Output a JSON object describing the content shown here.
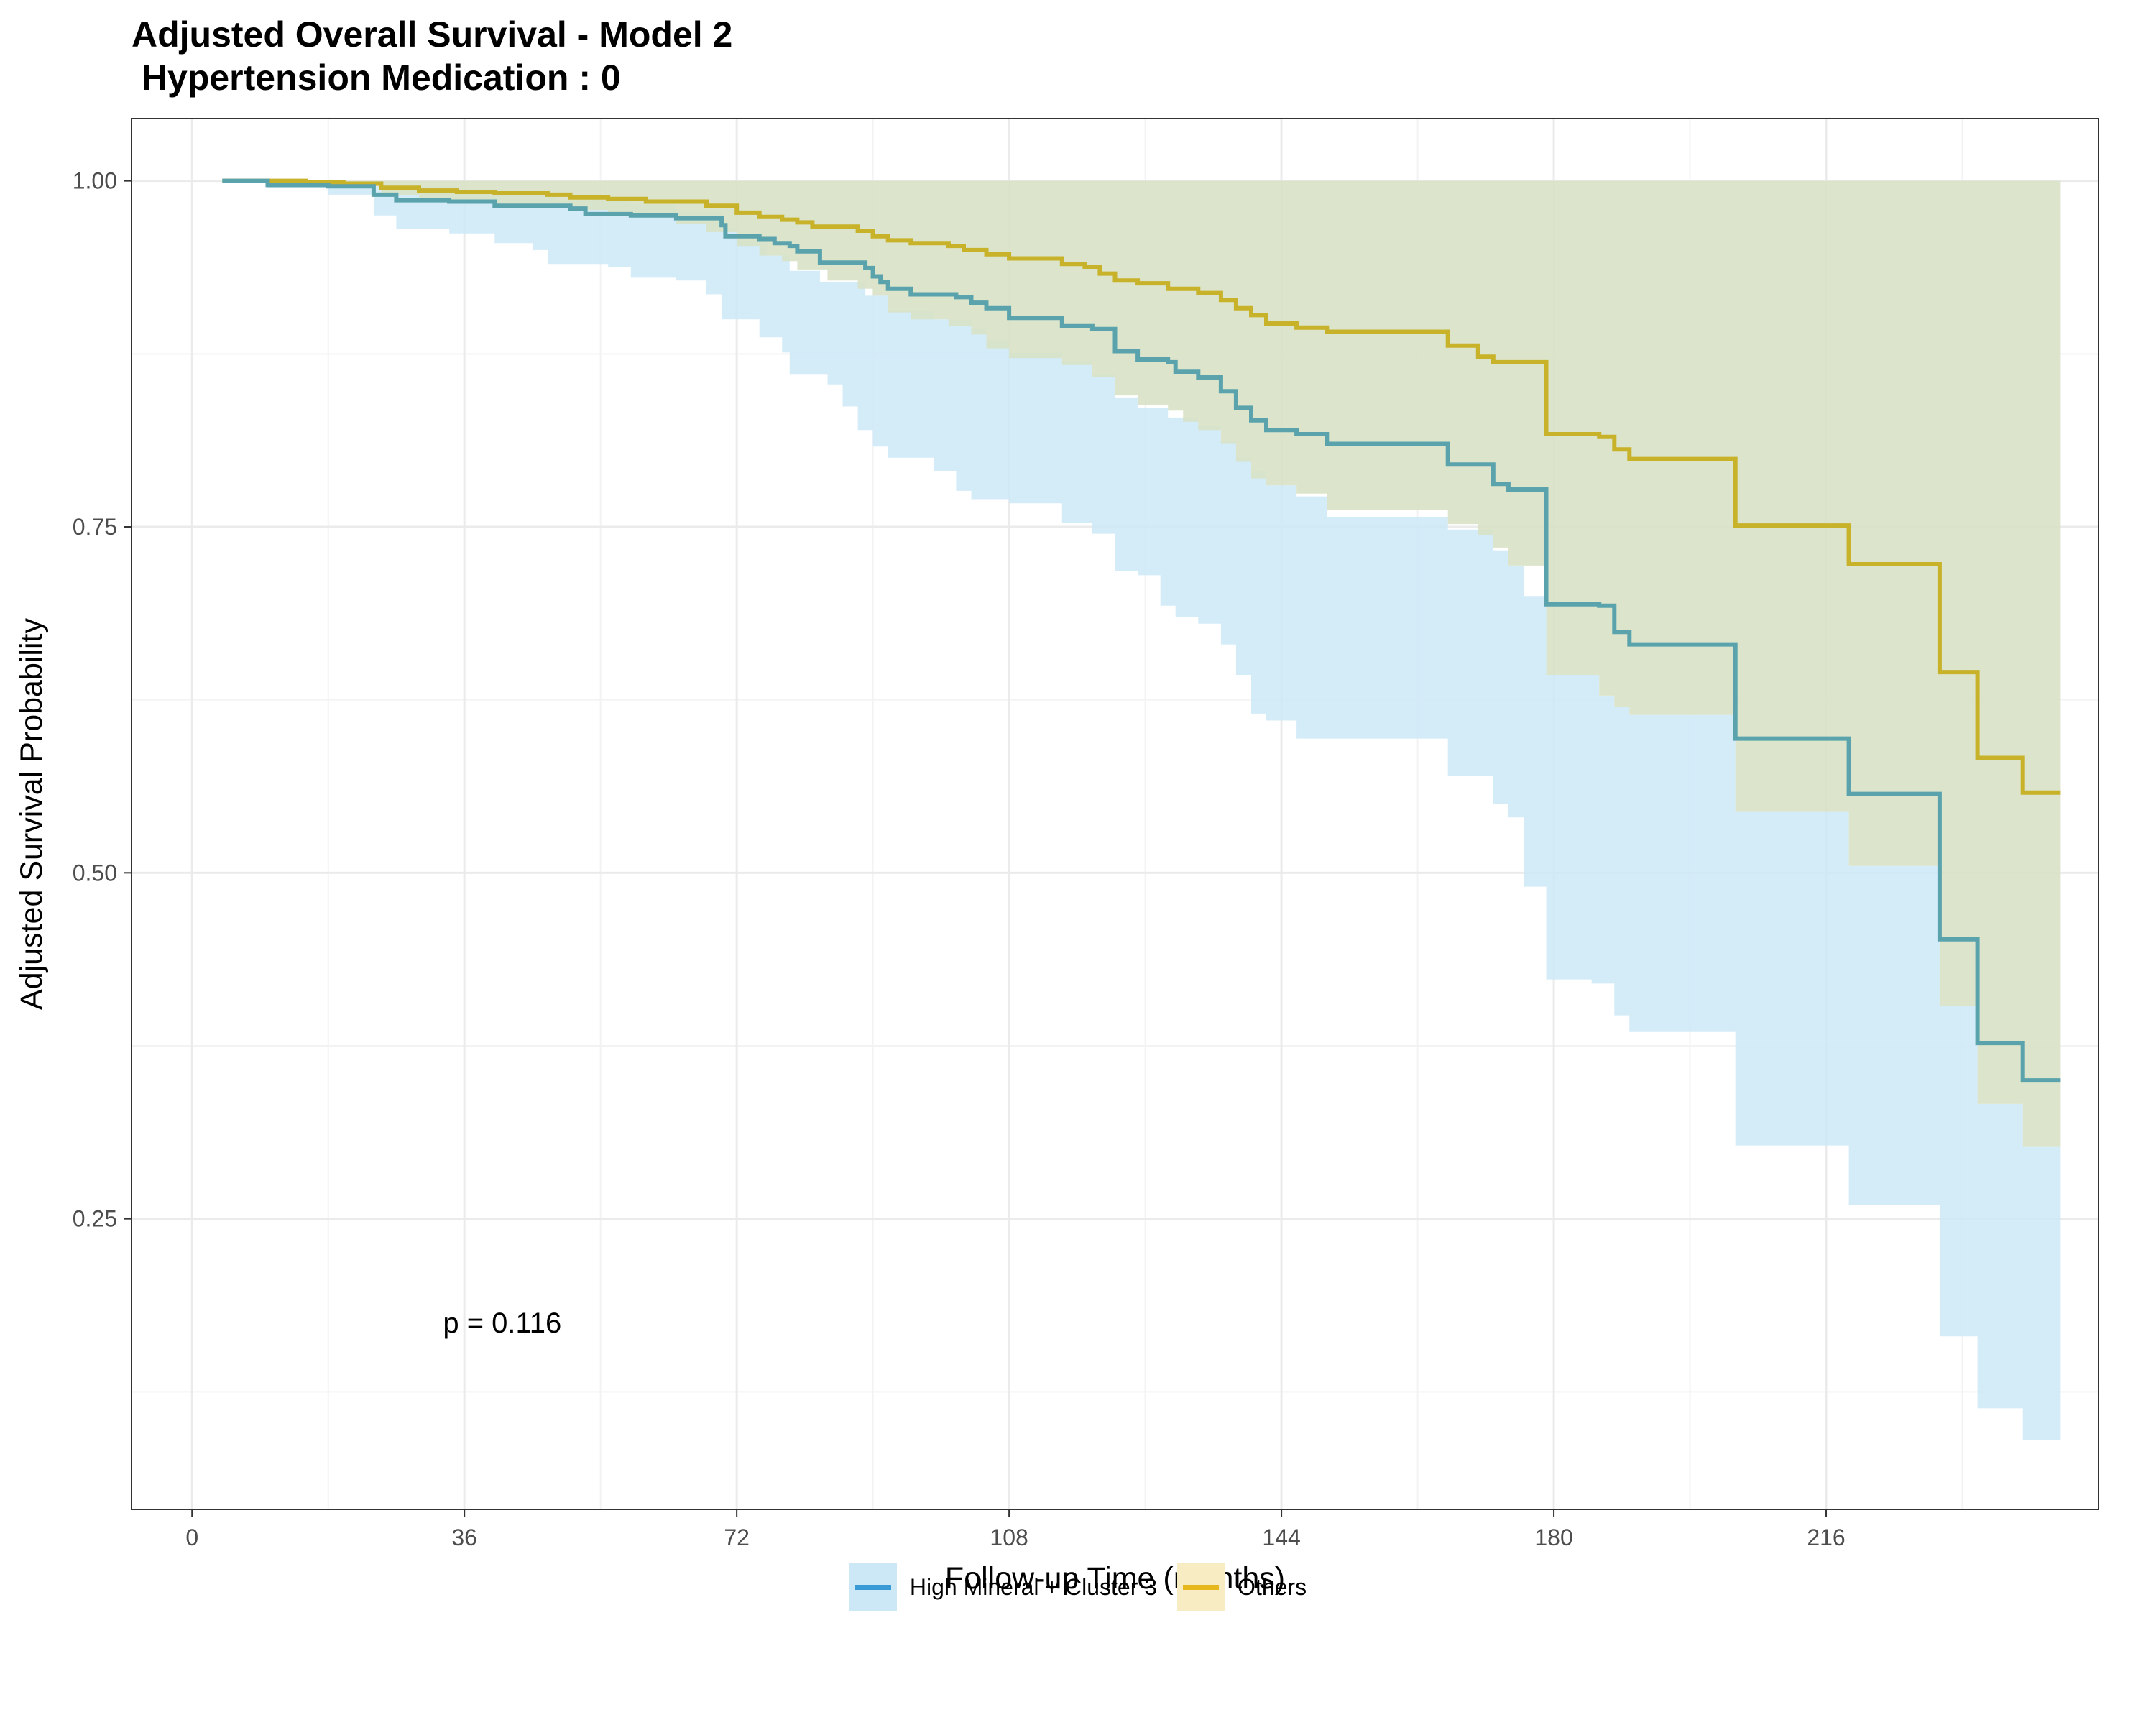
{
  "chart_data": {
    "type": "line",
    "title": "Adjusted Overall Survival - Model 2\n Hypertension Medication : 0",
    "xlabel": "Follow-up Time (months)",
    "ylabel": "Adjusted Survival Probability",
    "xlim": [
      -8,
      252
    ],
    "ylim": [
      0.04,
      1.045
    ],
    "xticks": [
      0,
      36,
      72,
      108,
      144,
      180,
      216
    ],
    "yticks": [
      0.25,
      0.5,
      0.75,
      1.0
    ],
    "ytick_labels": [
      "0.25",
      "0.50",
      "0.75",
      "1.00"
    ],
    "grid": true,
    "legend_position": "bottom",
    "annotation": "p = 0.116",
    "annotation_pos": [
      41,
      0.175
    ],
    "series": [
      {
        "name": "High Mineral + Cluster 3",
        "line_color": "#5aa3ad",
        "band_color": "#cce8f7",
        "legend_line_color": "#3a9ad6",
        "steps": [
          [
            4,
            1.0
          ],
          [
            10,
            0.997
          ],
          [
            18,
            0.996
          ],
          [
            24,
            0.99
          ],
          [
            27,
            0.986
          ],
          [
            34,
            0.985
          ],
          [
            40,
            0.982
          ],
          [
            50,
            0.98
          ],
          [
            52,
            0.976
          ],
          [
            58,
            0.975
          ],
          [
            64,
            0.973
          ],
          [
            70,
            0.968
          ],
          [
            70.5,
            0.96
          ],
          [
            75,
            0.958
          ],
          [
            77,
            0.955
          ],
          [
            79,
            0.953
          ],
          [
            80,
            0.949
          ],
          [
            83,
            0.941
          ],
          [
            89,
            0.937
          ],
          [
            90,
            0.931
          ],
          [
            91,
            0.927
          ],
          [
            92,
            0.922
          ],
          [
            95,
            0.918
          ],
          [
            101,
            0.916
          ],
          [
            103,
            0.912
          ],
          [
            105,
            0.908
          ],
          [
            108,
            0.901
          ],
          [
            115,
            0.895
          ],
          [
            119,
            0.893
          ],
          [
            122,
            0.877
          ],
          [
            125,
            0.871
          ],
          [
            129,
            0.869
          ],
          [
            130,
            0.862
          ],
          [
            133,
            0.858
          ],
          [
            136,
            0.848
          ],
          [
            138,
            0.836
          ],
          [
            140,
            0.827
          ],
          [
            142,
            0.82
          ],
          [
            146,
            0.817
          ],
          [
            150,
            0.81
          ],
          [
            166,
            0.795
          ],
          [
            172,
            0.781
          ],
          [
            174,
            0.777
          ],
          [
            179,
            0.694
          ],
          [
            186,
            0.693
          ],
          [
            188,
            0.674
          ],
          [
            190,
            0.665
          ],
          [
            203,
            0.665
          ],
          [
            204,
            0.597
          ],
          [
            218,
            0.597
          ],
          [
            219,
            0.557
          ],
          [
            230,
            0.557
          ],
          [
            231,
            0.452
          ],
          [
            235,
            0.452
          ],
          [
            236,
            0.377
          ],
          [
            241,
            0.377
          ],
          [
            242,
            0.35
          ],
          [
            247,
            0.35
          ]
        ],
        "upper": [
          [
            4,
            1.0
          ],
          [
            10,
            0.999
          ],
          [
            18,
            0.998
          ],
          [
            24,
            0.996
          ],
          [
            35,
            0.993
          ],
          [
            40,
            0.99
          ],
          [
            48,
            0.986
          ],
          [
            58,
            0.983
          ],
          [
            64,
            0.978
          ],
          [
            70,
            0.966
          ],
          [
            72,
            0.957
          ],
          [
            76,
            0.946
          ],
          [
            79,
            0.935
          ],
          [
            83,
            0.927
          ],
          [
            89,
            0.917
          ],
          [
            92,
            0.906
          ],
          [
            98,
            0.9
          ],
          [
            103,
            0.893
          ],
          [
            105,
            0.885
          ],
          [
            108,
            0.876
          ],
          [
            115,
            0.87
          ],
          [
            119,
            0.86
          ],
          [
            122,
            0.843
          ],
          [
            125,
            0.836
          ],
          [
            129,
            0.829
          ],
          [
            133,
            0.823
          ],
          [
            136,
            0.812
          ],
          [
            138,
            0.8
          ],
          [
            140,
            0.79
          ],
          [
            142,
            0.78
          ],
          [
            146,
            0.772
          ],
          [
            150,
            0.757
          ],
          [
            166,
            0.748
          ],
          [
            172,
            0.733
          ],
          [
            174,
            0.722
          ],
          [
            176,
            0.7
          ],
          [
            179,
            0.643
          ],
          [
            186,
            0.628
          ],
          [
            188,
            0.62
          ],
          [
            190,
            0.614
          ],
          [
            203,
            0.614
          ],
          [
            204,
            0.544
          ],
          [
            218,
            0.544
          ],
          [
            219,
            0.505
          ],
          [
            230,
            0.505
          ],
          [
            231,
            0.404
          ],
          [
            235,
            0.404
          ],
          [
            236,
            0.333
          ],
          [
            241,
            0.333
          ],
          [
            242,
            0.302
          ],
          [
            247,
            0.302
          ]
        ],
        "lower": [
          [
            4,
            1.0
          ],
          [
            10,
            0.995
          ],
          [
            18,
            0.99
          ],
          [
            24,
            0.975
          ],
          [
            27,
            0.965
          ],
          [
            34,
            0.962
          ],
          [
            40,
            0.955
          ],
          [
            45,
            0.95
          ],
          [
            47,
            0.94
          ],
          [
            55,
            0.938
          ],
          [
            58,
            0.93
          ],
          [
            64,
            0.928
          ],
          [
            68,
            0.918
          ],
          [
            70,
            0.9
          ],
          [
            75,
            0.887
          ],
          [
            78,
            0.876
          ],
          [
            79,
            0.86
          ],
          [
            84,
            0.853
          ],
          [
            86,
            0.837
          ],
          [
            88,
            0.82
          ],
          [
            90,
            0.808
          ],
          [
            92,
            0.8
          ],
          [
            98,
            0.79
          ],
          [
            101,
            0.776
          ],
          [
            103,
            0.77
          ],
          [
            108,
            0.767
          ],
          [
            115,
            0.753
          ],
          [
            119,
            0.745
          ],
          [
            122,
            0.718
          ],
          [
            125,
            0.715
          ],
          [
            128,
            0.693
          ],
          [
            130,
            0.685
          ],
          [
            133,
            0.68
          ],
          [
            136,
            0.665
          ],
          [
            138,
            0.643
          ],
          [
            140,
            0.615
          ],
          [
            142,
            0.61
          ],
          [
            146,
            0.597
          ],
          [
            150,
            0.597
          ],
          [
            166,
            0.57
          ],
          [
            172,
            0.55
          ],
          [
            174,
            0.54
          ],
          [
            176,
            0.49
          ],
          [
            179,
            0.423
          ],
          [
            185,
            0.42
          ],
          [
            188,
            0.397
          ],
          [
            190,
            0.385
          ],
          [
            203,
            0.385
          ],
          [
            204,
            0.303
          ],
          [
            218,
            0.303
          ],
          [
            219,
            0.26
          ],
          [
            230,
            0.26
          ],
          [
            231,
            0.165
          ],
          [
            235,
            0.165
          ],
          [
            236,
            0.113
          ],
          [
            241,
            0.113
          ],
          [
            242,
            0.09
          ],
          [
            247,
            0.09
          ]
        ]
      },
      {
        "name": "Others",
        "line_color": "#c8b22a",
        "band_color": "#d8e2c5",
        "legend_line_color": "#e6b81d",
        "legend_fill_color": "#f8ecc2",
        "steps": [
          [
            4,
            1.0
          ],
          [
            15,
            0.999
          ],
          [
            20,
            0.998
          ],
          [
            25,
            0.995
          ],
          [
            30,
            0.993
          ],
          [
            35,
            0.992
          ],
          [
            40,
            0.991
          ],
          [
            47,
            0.99
          ],
          [
            50,
            0.988
          ],
          [
            55,
            0.987
          ],
          [
            60,
            0.985
          ],
          [
            68,
            0.982
          ],
          [
            72,
            0.977
          ],
          [
            75,
            0.974
          ],
          [
            78,
            0.972
          ],
          [
            80,
            0.97
          ],
          [
            82,
            0.967
          ],
          [
            88,
            0.964
          ],
          [
            90,
            0.96
          ],
          [
            92,
            0.957
          ],
          [
            95,
            0.955
          ],
          [
            100,
            0.953
          ],
          [
            102,
            0.95
          ],
          [
            105,
            0.947
          ],
          [
            108,
            0.944
          ],
          [
            115,
            0.94
          ],
          [
            118,
            0.938
          ],
          [
            120,
            0.933
          ],
          [
            122,
            0.928
          ],
          [
            125,
            0.926
          ],
          [
            129,
            0.922
          ],
          [
            133,
            0.919
          ],
          [
            136,
            0.914
          ],
          [
            138,
            0.908
          ],
          [
            140,
            0.903
          ],
          [
            142,
            0.897
          ],
          [
            146,
            0.894
          ],
          [
            150,
            0.891
          ],
          [
            166,
            0.881
          ],
          [
            170,
            0.873
          ],
          [
            172,
            0.869
          ],
          [
            179,
            0.817
          ],
          [
            186,
            0.815
          ],
          [
            188,
            0.806
          ],
          [
            190,
            0.799
          ],
          [
            203,
            0.799
          ],
          [
            204,
            0.751
          ],
          [
            218,
            0.751
          ],
          [
            219,
            0.723
          ],
          [
            230,
            0.723
          ],
          [
            231,
            0.645
          ],
          [
            235,
            0.645
          ],
          [
            236,
            0.583
          ],
          [
            241,
            0.583
          ],
          [
            242,
            0.558
          ],
          [
            247,
            0.558
          ]
        ],
        "upper": [
          [
            4,
            1.0
          ],
          [
            247,
            1.0
          ]
        ],
        "lower": [
          [
            4,
            1.0
          ],
          [
            15,
            0.998
          ],
          [
            20,
            0.996
          ],
          [
            25,
            0.99
          ],
          [
            30,
            0.986
          ],
          [
            35,
            0.984
          ],
          [
            40,
            0.983
          ],
          [
            47,
            0.981
          ],
          [
            50,
            0.979
          ],
          [
            55,
            0.977
          ],
          [
            60,
            0.974
          ],
          [
            64,
            0.969
          ],
          [
            68,
            0.963
          ],
          [
            72,
            0.953
          ],
          [
            75,
            0.946
          ],
          [
            78,
            0.942
          ],
          [
            80,
            0.936
          ],
          [
            84,
            0.928
          ],
          [
            88,
            0.922
          ],
          [
            90,
            0.917
          ],
          [
            92,
            0.905
          ],
          [
            95,
            0.9
          ],
          [
            100,
            0.895
          ],
          [
            103,
            0.889
          ],
          [
            105,
            0.879
          ],
          [
            108,
            0.872
          ],
          [
            115,
            0.867
          ],
          [
            119,
            0.858
          ],
          [
            122,
            0.845
          ],
          [
            125,
            0.838
          ],
          [
            129,
            0.834
          ],
          [
            131,
            0.826
          ],
          [
            133,
            0.82
          ],
          [
            136,
            0.81
          ],
          [
            138,
            0.797
          ],
          [
            140,
            0.785
          ],
          [
            142,
            0.78
          ],
          [
            146,
            0.774
          ],
          [
            150,
            0.762
          ],
          [
            166,
            0.752
          ],
          [
            170,
            0.744
          ],
          [
            172,
            0.735
          ],
          [
            174,
            0.722
          ],
          [
            179,
            0.643
          ],
          [
            186,
            0.628
          ],
          [
            188,
            0.62
          ],
          [
            190,
            0.614
          ],
          [
            203,
            0.614
          ],
          [
            204,
            0.544
          ],
          [
            218,
            0.544
          ],
          [
            219,
            0.505
          ],
          [
            230,
            0.505
          ],
          [
            231,
            0.404
          ],
          [
            235,
            0.404
          ],
          [
            236,
            0.333
          ],
          [
            241,
            0.333
          ],
          [
            242,
            0.302
          ],
          [
            247,
            0.302
          ]
        ]
      }
    ]
  }
}
